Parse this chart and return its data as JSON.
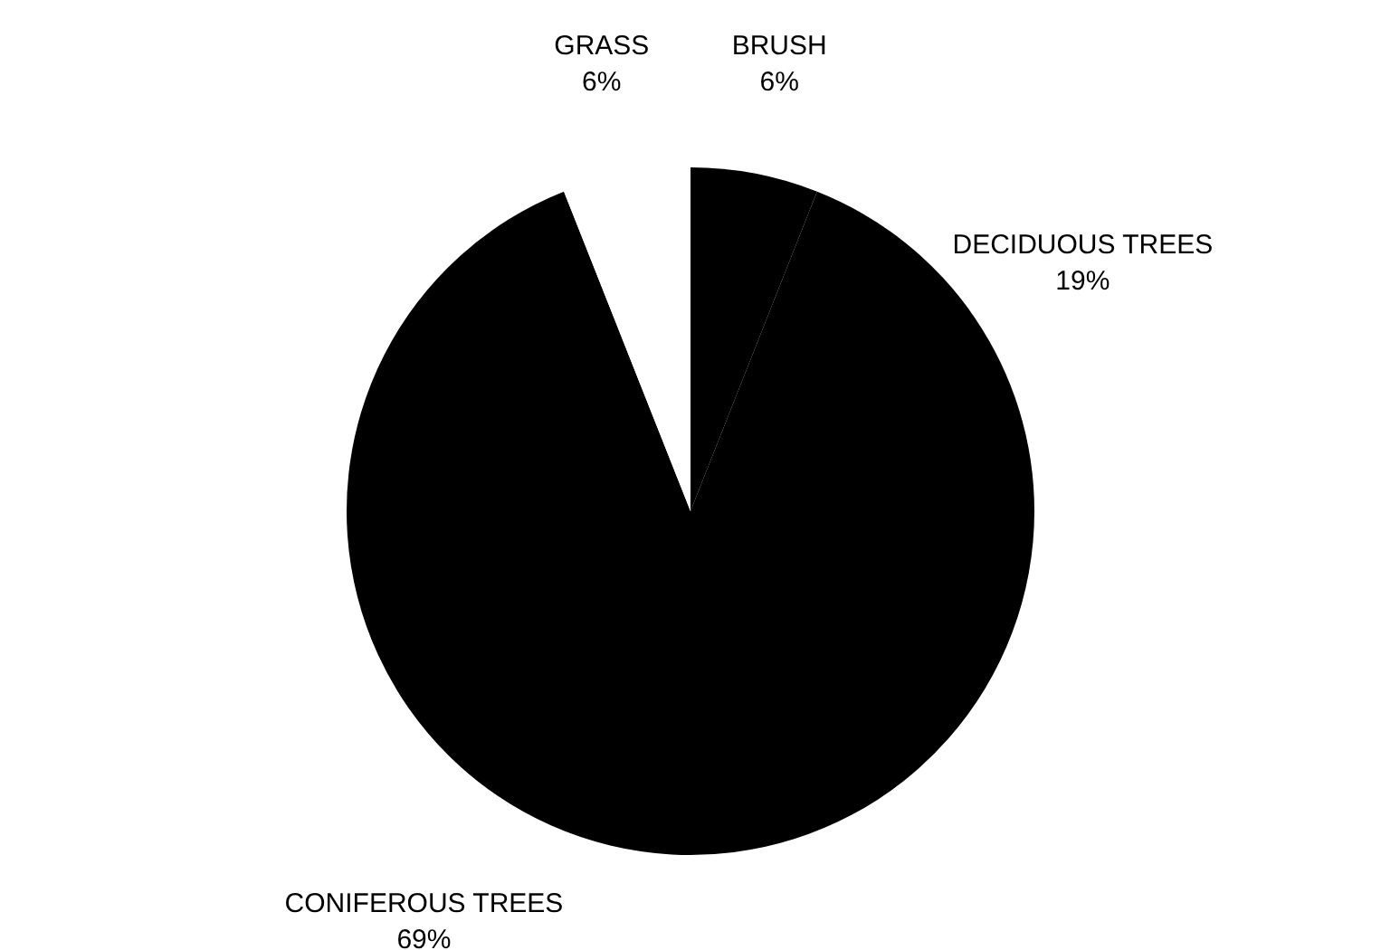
{
  "chart_data": {
    "type": "pie",
    "categories": [
      "BRUSH",
      "DECIDUOUS TREES",
      "CONIFEROUS TREES",
      "GRASS"
    ],
    "values": [
      6,
      19,
      69,
      6
    ],
    "value_labels": [
      "6%",
      "19%",
      "69%",
      "6%"
    ],
    "colors": [
      "#000000",
      "#000000",
      "#000000",
      "#ffffff"
    ]
  }
}
